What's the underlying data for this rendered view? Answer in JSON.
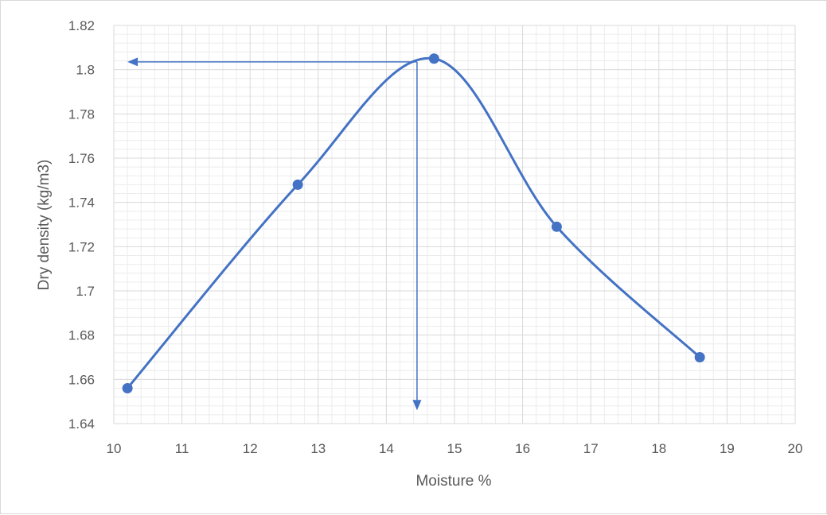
{
  "chart_data": {
    "type": "line",
    "smoothed": true,
    "title": "",
    "xlabel": "Moisture %",
    "ylabel": "Dry density (kg/m3)",
    "xlim": [
      10,
      20
    ],
    "ylim": [
      1.64,
      1.82
    ],
    "x_ticks": [
      10,
      11,
      12,
      13,
      14,
      15,
      16,
      17,
      18,
      19,
      20
    ],
    "y_ticks": [
      "1.64",
      "1.66",
      "1.68",
      "1.7",
      "1.72",
      "1.74",
      "1.76",
      "1.78",
      "1.8",
      "1.82"
    ],
    "grid": {
      "major": true,
      "minor": true
    },
    "series": [
      {
        "name": "",
        "color": "#4472C4",
        "points": [
          {
            "x": 10.2,
            "y": 1.656
          },
          {
            "x": 12.7,
            "y": 1.748
          },
          {
            "x": 14.7,
            "y": 1.805
          },
          {
            "x": 16.5,
            "y": 1.729
          },
          {
            "x": 18.6,
            "y": 1.67
          }
        ]
      }
    ],
    "annotations": [
      {
        "type": "arrow",
        "color": "#4472C4",
        "from": {
          "x": 14.45,
          "y": 1.8035
        },
        "to": {
          "x": 10.2,
          "y": 1.8035
        }
      },
      {
        "type": "arrow",
        "color": "#4472C4",
        "from": {
          "x": 14.45,
          "y": 1.8035
        },
        "to": {
          "x": 14.45,
          "y": 1.646
        }
      }
    ],
    "colors": {
      "major_grid": "#d9d9d9",
      "minor_grid": "#ececec",
      "text": "#595959"
    }
  }
}
